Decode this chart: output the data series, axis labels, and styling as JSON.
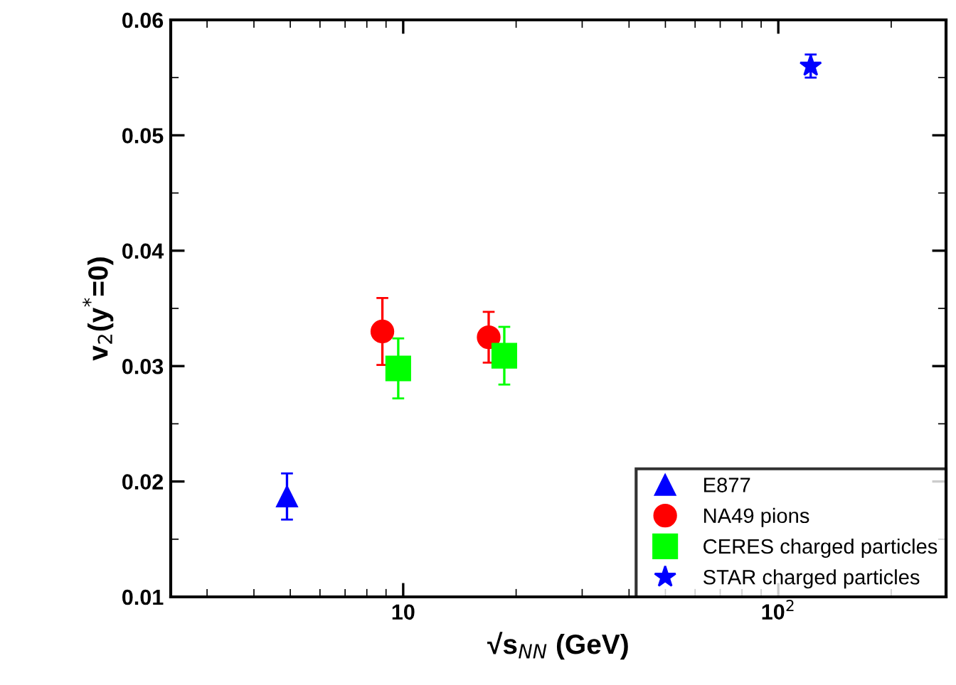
{
  "chart_data": {
    "type": "scatter",
    "xlabel": "√s$_{NN}$ (GeV)",
    "ylabel": "v$_{2}$(y$^{*}$=0)",
    "log": "x",
    "xlim": [
      2.4,
      280
    ],
    "xticks": [
      10,
      {
        "value": 100,
        "label": "10$^{2}$"
      }
    ],
    "ylim": [
      0.01,
      0.06
    ],
    "yticks": [
      0.01,
      0.02,
      0.03,
      0.04,
      0.05,
      0.06
    ],
    "grid": false,
    "legend": "bottom right",
    "series": [
      {
        "name": "E877",
        "color": "#0000ff",
        "marker": "triangle",
        "x": [
          4.9
        ],
        "values": [
          0.0187
        ],
        "errors": [
          0.002
        ]
      },
      {
        "name": "NA49 pions",
        "color": "#ff0000",
        "marker": "circle",
        "x": [
          8.8,
          16.9
        ],
        "values": [
          0.033,
          0.0325
        ],
        "errors": [
          0.0029,
          0.0022
        ]
      },
      {
        "name": "CERES charged particles",
        "color": "#00ff00",
        "marker": "square",
        "x": [
          9.7,
          18.6
        ],
        "values": [
          0.0298,
          0.0309
        ],
        "errors": [
          0.0026,
          0.0025
        ]
      },
      {
        "name": "STAR charged particles",
        "color": "#0000ff",
        "marker": "star",
        "x": [
          122
        ],
        "values": [
          0.056
        ],
        "errors": [
          0.001
        ]
      }
    ]
  }
}
